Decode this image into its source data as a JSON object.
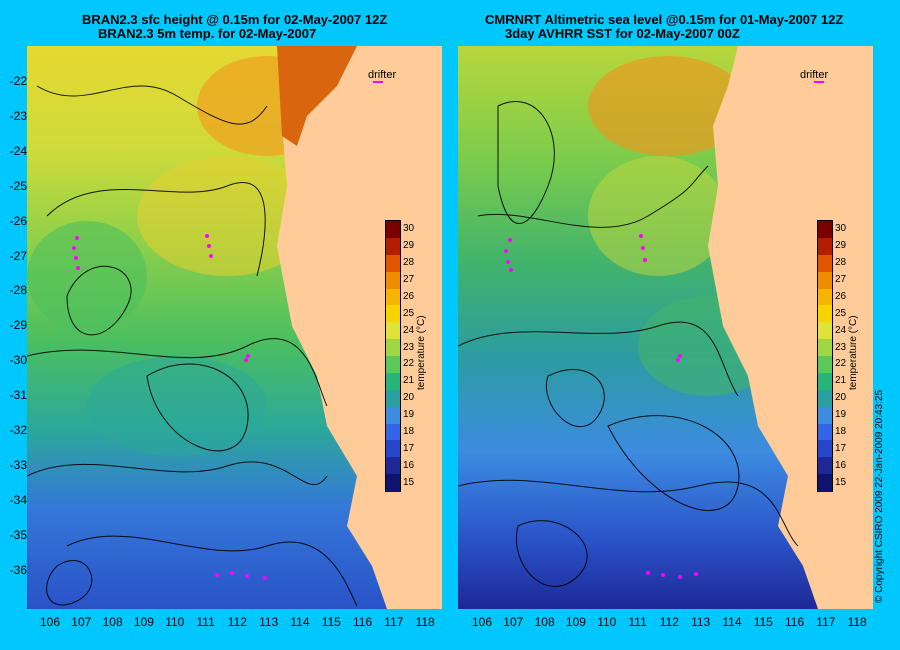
{
  "left_panel": {
    "title_line1": "BRAN2.3 sfc height @ 0.15m for 02-May-2007 12Z",
    "title_line2": "BRAN2.3 5m temp. for 02-May-2007"
  },
  "right_panel": {
    "title_line1": "CMRNRT Altimetric sea level  @0.15m  for 01-May-2007 12Z",
    "title_line2": "3day AVHRR SST for 02-May-2007 00Z"
  },
  "drifter_label": "drifter",
  "colorbar": {
    "title": "temperature (°C)",
    "ticks": [
      "30",
      "29",
      "28",
      "27",
      "26",
      "25",
      "24",
      "23",
      "22",
      "21",
      "20",
      "19",
      "18",
      "17",
      "16",
      "15"
    ],
    "colors": [
      "#7a0000",
      "#b41e00",
      "#e05500",
      "#f08c00",
      "#f5b400",
      "#f7d400",
      "#e0e23c",
      "#9fd646",
      "#5ac85a",
      "#28b478",
      "#2ca0a0",
      "#3c8ce0",
      "#3264e6",
      "#2846c8",
      "#1e2896",
      "#0f146e"
    ]
  },
  "axes": {
    "x_ticks": [
      "106",
      "107",
      "108",
      "109",
      "110",
      "111",
      "112",
      "113",
      "114",
      "115",
      "116",
      "117",
      "118"
    ],
    "y_ticks": [
      "-22",
      "-23",
      "-24",
      "-25",
      "-26",
      "-27",
      "-28",
      "-29",
      "-30",
      "-31",
      "-32",
      "-33",
      "-34",
      "-35",
      "-36"
    ]
  },
  "copyright": "© Copyright CSIRO 2009   22-Jan-2009 20:43:25",
  "style": {
    "background": "#00c8ff",
    "land": "#ffcc99",
    "drifter_track": "#ff00ff"
  }
}
